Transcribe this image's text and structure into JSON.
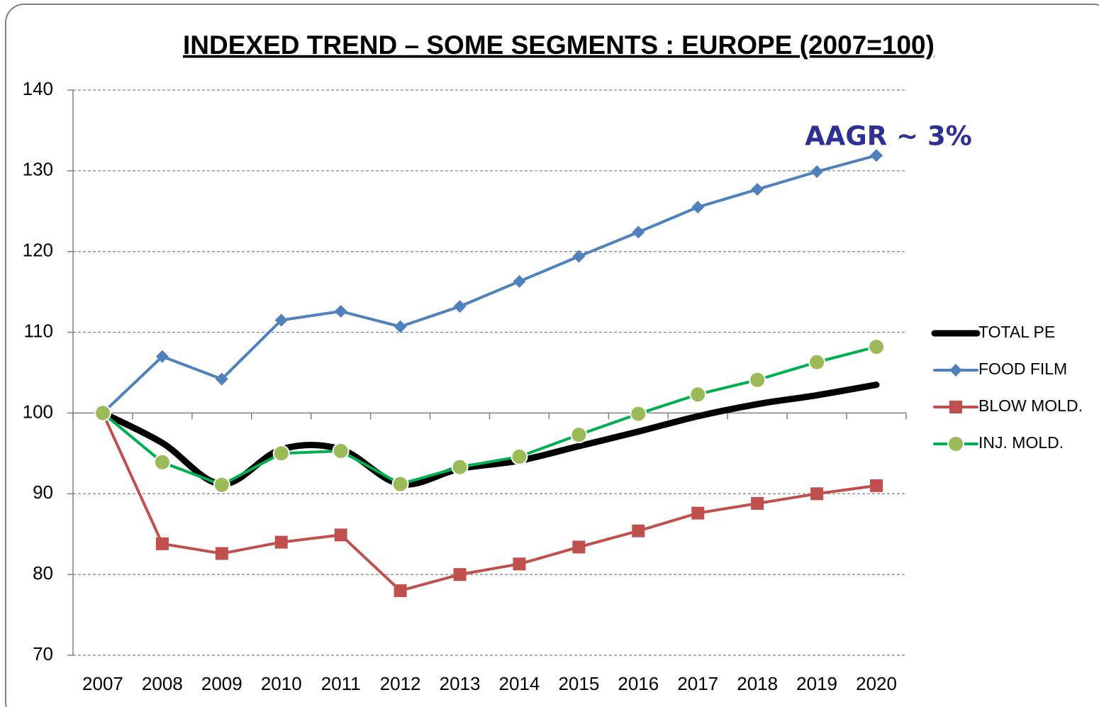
{
  "chart_data": {
    "type": "line",
    "title": "INDEXED TREND – SOME SEGMENTS : EUROPE (2007=100)",
    "annotation": "AAGR ~ 3%",
    "categories": [
      "2007",
      "2008",
      "2009",
      "2010",
      "2011",
      "2012",
      "2013",
      "2014",
      "2015",
      "2016",
      "2017",
      "2018",
      "2019",
      "2020"
    ],
    "series": [
      {
        "name": "TOTAL PE",
        "color": "#000000",
        "marker": "none",
        "smooth": true,
        "values": [
          100,
          96.3,
          91.2,
          95.5,
          95.5,
          91.2,
          93.1,
          94.1,
          95.9,
          97.7,
          99.6,
          101.1,
          102.2,
          103.5
        ]
      },
      {
        "name": "FOOD FILM",
        "color": "#4f81bd",
        "marker": "diamond",
        "smooth": false,
        "values": [
          100,
          107.0,
          104.2,
          111.5,
          112.6,
          110.7,
          113.2,
          116.3,
          119.4,
          122.4,
          125.5,
          127.7,
          129.9,
          131.9
        ]
      },
      {
        "name": "BLOW MOLD.",
        "color": "#c0504d",
        "marker": "square",
        "smooth": false,
        "values": [
          100,
          83.8,
          82.6,
          84.0,
          84.9,
          78.0,
          80.0,
          81.3,
          83.4,
          85.4,
          87.6,
          88.8,
          90.0,
          91.0
        ]
      },
      {
        "name": "INJ. MOLD.",
        "color": "#00b050",
        "marker": "circle",
        "marker_color": "#9bbb59",
        "smooth": false,
        "values": [
          100,
          93.9,
          91.1,
          95.0,
          95.3,
          91.2,
          93.3,
          94.6,
          97.3,
          99.9,
          102.3,
          104.1,
          106.3,
          108.2
        ]
      }
    ],
    "ylim": [
      70,
      140
    ],
    "yticks": [
      70,
      80,
      90,
      100,
      110,
      120,
      130,
      140
    ],
    "x_axis_crosses": 100,
    "grid": true,
    "legend": "right"
  }
}
